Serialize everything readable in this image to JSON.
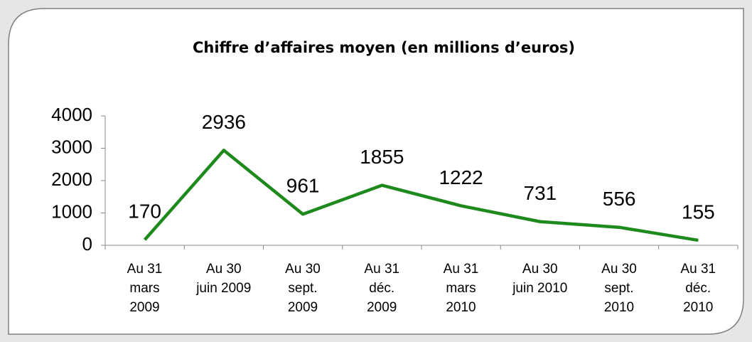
{
  "chart_data": {
    "type": "line",
    "title": "Chiffre d’affaires moyen (en millions d’euros)",
    "categories": [
      "Au 31\nmars\n2009",
      "Au 30\njuin 2009",
      "Au 30\nsept.\n2009",
      "Au 31\ndéc.\n2009",
      "Au 31\nmars\n2010",
      "Au 30\njuin 2010",
      "Au 30\nsept.\n2010",
      "Au 31\ndéc.\n2010"
    ],
    "values": [
      170,
      2936,
      961,
      1855,
      1222,
      731,
      556,
      155
    ],
    "color": "#1e8a1e",
    "ylim": [
      0,
      4000
    ],
    "yticks": [
      0,
      1000,
      2000,
      3000,
      4000
    ],
    "grid": false
  }
}
